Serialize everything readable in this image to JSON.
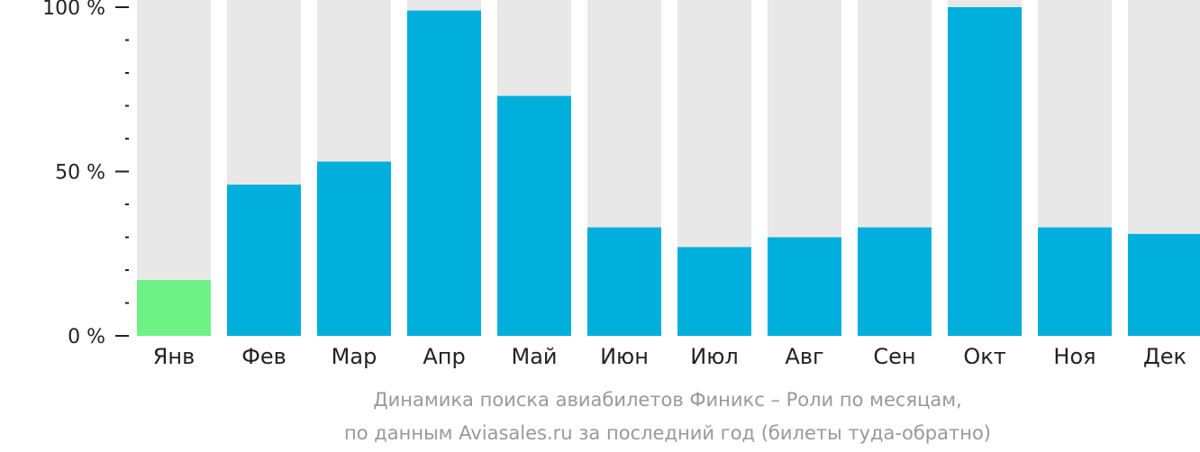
{
  "chart_data": {
    "type": "bar",
    "categories": [
      "Янв",
      "Фев",
      "Мар",
      "Апр",
      "Май",
      "Июн",
      "Июл",
      "Авг",
      "Сен",
      "Окт",
      "Ноя",
      "Дек"
    ],
    "values": [
      17,
      46,
      53,
      99,
      73,
      33,
      27,
      30,
      33,
      100,
      33,
      31
    ],
    "ylim": [
      0,
      100
    ],
    "y_ticks": [
      {
        "value": 100,
        "label": "100 %"
      },
      {
        "value": 50,
        "label": "50 %"
      },
      {
        "value": 0,
        "label": "0 %"
      }
    ],
    "minor_tick_step": 10,
    "grid": false,
    "legend": "none",
    "highlight_index": 0
  },
  "caption": {
    "line1": "Динамика поиска авиабилетов Финикс – Роли по месяцам,",
    "line2": "по данным Aviasales.ru за последний год (билеты туда-обратно)"
  },
  "colors": {
    "bar": "#00afdc",
    "highlight": "#6ef286",
    "background_bar": "#e8e8e8",
    "axis": "#222222",
    "text": "#222222",
    "caption": "#999999"
  }
}
